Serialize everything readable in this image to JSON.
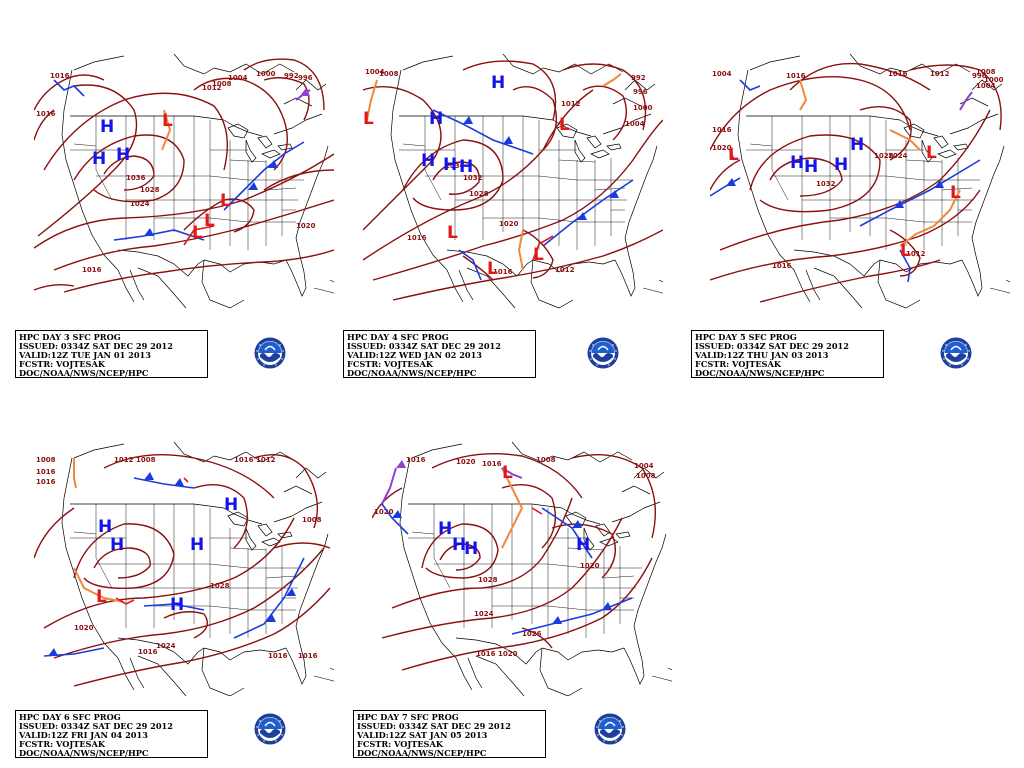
{
  "colors": {
    "isobar": "#8b1010",
    "high": "#1414e6",
    "low": "#e01818",
    "cold_front": "#1a3cdc",
    "warm_front": "#e01818",
    "trough": "#f0883c",
    "occluded": "#9040d0",
    "coast": "#000000"
  },
  "panels": [
    {
      "day": 3,
      "caption": {
        "line1": "HPC DAY 3 SFC PROG",
        "line2": "ISSUED: 0334Z SAT DEC 29 2012",
        "line3": "VALID:12Z TUE JAN 01 2013",
        "line4": "FCSTR: VOJTESAK",
        "line5": "DOC/NOAA/NWS/NCEP/HPC"
      },
      "isobar_labels": [
        "1016",
        "1016",
        "1012",
        "1004",
        "1000",
        "1008",
        "992",
        "996",
        "1028",
        "1024",
        "1020",
        "1016",
        "1036"
      ],
      "highs": 3,
      "lows": 4
    },
    {
      "day": 4,
      "caption": {
        "line1": "HPC DAY 4 SFC PROG",
        "line2": "ISSUED: 0334Z SAT DEC 29 2012",
        "line3": "VALID:12Z WED JAN 02 2013",
        "line4": "FCSTR: VOJTESAK",
        "line5": "DOC/NOAA/NWS/NCEP/HPC"
      },
      "isobar_labels": [
        "1004",
        "1008",
        "992",
        "996",
        "1000",
        "1004",
        "1012",
        "1032",
        "1036",
        "1028",
        "1020",
        "1016",
        "1016",
        "1012"
      ],
      "highs": 5,
      "lows": 5
    },
    {
      "day": 5,
      "caption": {
        "line1": "HPC DAY 5 SFC PROG",
        "line2": "ISSUED: 0334Z SAT DEC 29 2012",
        "line3": "VALID:12Z THU JAN 03 2013",
        "line4": "FCSTR: VOJTESAK",
        "line5": "DOC/NOAA/NWS/NCEP/HPC"
      },
      "isobar_labels": [
        "1004",
        "1016",
        "1016",
        "1020",
        "1016",
        "1012",
        "1008",
        "1000",
        "1004",
        "996",
        "1032",
        "1028",
        "1024",
        "1016",
        "1012"
      ],
      "highs": 4,
      "lows": 4
    },
    {
      "day": 6,
      "caption": {
        "line1": "HPC DAY 6 SFC PROG",
        "line2": "ISSUED: 0334Z SAT DEC 29 2012",
        "line3": "VALID:12Z FRI JAN 04 2013",
        "line4": "FCSTR: VOJTESAK",
        "line5": "DOC/NOAA/NWS/NCEP/HPC"
      },
      "isobar_labels": [
        "1008",
        "1016",
        "1016",
        "1012",
        "1008",
        "1016",
        "1012",
        "1008",
        "1028",
        "1024",
        "1020",
        "1016",
        "1016",
        "1016"
      ],
      "highs": 5,
      "lows": 1
    },
    {
      "day": 7,
      "caption": {
        "line1": "HPC DAY 7 SFC PROG",
        "line2": "ISSUED: 0334Z SAT DEC 29 2012",
        "line3": "VALID:12Z SAT JAN 05 2013",
        "line4": "FCSTR: VOJTESAK",
        "line5": "DOC/NOAA/NWS/NCEP/HPC"
      },
      "isobar_labels": [
        "1016",
        "1020",
        "1016",
        "1008",
        "1004",
        "1008",
        "1020",
        "1028",
        "1024",
        "1020",
        "1016",
        "1020",
        "1026"
      ],
      "highs": 4,
      "lows": 1
    }
  ]
}
